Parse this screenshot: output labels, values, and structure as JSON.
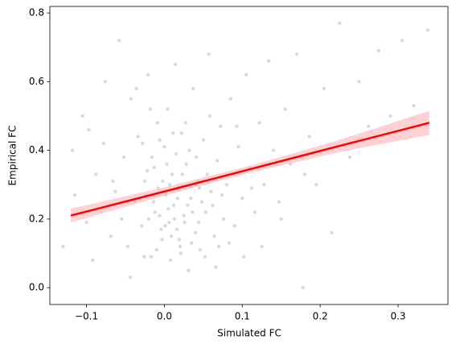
{
  "chart_data": {
    "type": "scatter",
    "xlabel": "Simulated FC",
    "ylabel": "Empirical FC",
    "xlim": [
      -0.147,
      0.364
    ],
    "ylim": [
      -0.049,
      0.819
    ],
    "xticks": [
      {
        "value": -0.1,
        "label": "−0.1"
      },
      {
        "value": 0,
        "label": "0.0"
      },
      0.1,
      0.2,
      0.3
    ],
    "yticks": [
      {
        "value": 0,
        "label": "0.0"
      },
      0.2,
      0.4,
      0.6,
      0.8
    ],
    "points": {
      "color": "#808080",
      "x": [
        -0.118,
        -0.105,
        -0.097,
        -0.088,
        -0.081,
        -0.076,
        -0.069,
        -0.063,
        -0.058,
        -0.052,
        -0.047,
        -0.043,
        -0.038,
        -0.034,
        -0.029,
        -0.025,
        -0.021,
        -0.017,
        -0.013,
        -0.009,
        -0.006,
        -0.003,
        0.0,
        0.002,
        0.004,
        0.006,
        0.008,
        0.01,
        0.012,
        0.014,
        0.016,
        0.018,
        0.02,
        0.022,
        0.025,
        0.028,
        0.031,
        0.034,
        0.037,
        0.04,
        0.043,
        0.046,
        0.05,
        0.053,
        0.057,
        0.06,
        0.064,
        0.068,
        0.072,
        0.076,
        0.08,
        0.085,
        0.09,
        0.095,
        0.1,
        0.105,
        0.11,
        0.116,
        0.122,
        0.128,
        0.134,
        0.14,
        0.147,
        0.155,
        0.162,
        0.17,
        0.178,
        0.186,
        0.195,
        0.205,
        0.215,
        0.225,
        0.238,
        0.25,
        0.262,
        0.275,
        0.29,
        0.305,
        0.32,
        0.338,
        0.001,
        0.005,
        0.009,
        0.013,
        0.017,
        0.021,
        0.026,
        0.03,
        -0.004,
        -0.008,
        -0.012,
        -0.016,
        -0.02,
        -0.024,
        -0.028,
        0.035,
        0.039,
        0.044,
        0.048,
        0.052,
        0.003,
        0.007,
        0.011,
        0.015,
        0.019,
        0.023,
        0.027,
        0.032,
        -0.002,
        -0.006,
        -0.01,
        -0.014,
        -0.018,
        -0.022,
        0.036,
        0.041,
        0.045,
        0.055,
        0.062,
        0.07,
        -0.13,
        -0.115,
        -0.1,
        -0.092,
        -0.078,
        -0.066,
        -0.055,
        -0.044,
        -0.036,
        -0.026,
        0.058,
        0.066,
        0.074,
        0.083,
        0.093,
        0.102,
        0.112,
        0.125,
        0.15,
        0.18
      ],
      "y": [
        0.4,
        0.5,
        0.46,
        0.33,
        0.22,
        0.6,
        0.15,
        0.28,
        0.72,
        0.38,
        0.12,
        0.55,
        0.25,
        0.44,
        0.18,
        0.31,
        0.62,
        0.09,
        0.35,
        0.48,
        0.21,
        0.14,
        0.41,
        0.27,
        0.52,
        0.19,
        0.08,
        0.33,
        0.24,
        0.65,
        0.17,
        0.29,
        0.12,
        0.45,
        0.21,
        0.36,
        0.05,
        0.26,
        0.58,
        0.16,
        0.31,
        0.11,
        0.43,
        0.22,
        0.68,
        0.28,
        0.15,
        0.37,
        0.47,
        0.2,
        0.3,
        0.55,
        0.18,
        0.41,
        0.26,
        0.62,
        0.35,
        0.22,
        0.48,
        0.3,
        0.66,
        0.4,
        0.25,
        0.52,
        0.36,
        0.68,
        0.0,
        0.44,
        0.3,
        0.58,
        0.16,
        0.77,
        0.38,
        0.6,
        0.47,
        0.69,
        0.5,
        0.72,
        0.53,
        0.75,
        0.18,
        0.23,
        0.15,
        0.2,
        0.26,
        0.1,
        0.19,
        0.24,
        0.17,
        0.29,
        0.22,
        0.38,
        0.2,
        0.27,
        0.42,
        0.13,
        0.3,
        0.19,
        0.25,
        0.09,
        0.36,
        0.3,
        0.45,
        0.39,
        0.14,
        0.33,
        0.48,
        0.4,
        0.31,
        0.43,
        0.11,
        0.25,
        0.52,
        0.34,
        0.22,
        0.38,
        0.29,
        0.33,
        0.24,
        0.12,
        0.12,
        0.27,
        0.19,
        0.08,
        0.42,
        0.31,
        0.2,
        0.03,
        0.58,
        0.09,
        0.5,
        0.06,
        0.27,
        0.13,
        0.47,
        0.09,
        0.29,
        0.12,
        0.2,
        0.33
      ]
    },
    "regression": {
      "color": "#ff0000",
      "band_color": "#ffb3b8",
      "x": [
        -0.12,
        0.0,
        0.11,
        0.22,
        0.34
      ],
      "y": [
        0.21,
        0.28,
        0.345,
        0.41,
        0.48
      ],
      "lower": [
        0.19,
        0.268,
        0.335,
        0.393,
        0.445
      ],
      "upper": [
        0.23,
        0.292,
        0.355,
        0.427,
        0.515
      ]
    }
  }
}
